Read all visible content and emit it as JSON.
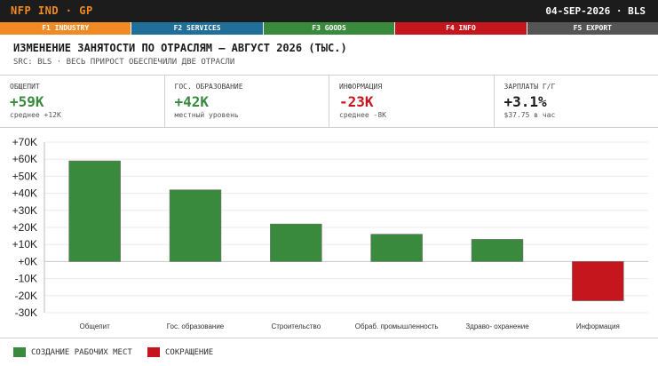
{
  "terminal": {
    "ticker": "NFP IND · GP",
    "date_source": "04-SEP-2026 · BLS"
  },
  "fkeys": [
    {
      "label": "F1 INDUSTRY",
      "color": "#f08a24"
    },
    {
      "label": "F2 SERVICES",
      "color": "#1f6f99"
    },
    {
      "label": "F3 GOODS",
      "color": "#3a8a3e"
    },
    {
      "label": "F4 INFO",
      "color": "#c4161c"
    },
    {
      "label": "F5 EXPORT",
      "color": "#555555"
    }
  ],
  "header": {
    "title": "ИЗМЕНЕНИЕ ЗАНЯТОСТИ ПО ОТРАСЛЯМ — АВГУСТ 2026 (ТЫС.)",
    "subtitle": "SRC: BLS · ВЕСЬ ПРИРОСТ ОБЕСПЕЧИЛИ ДВЕ ОТРАСЛИ"
  },
  "kpis": [
    {
      "label": "ОБЩЕПИТ",
      "value": "+59K",
      "sub": "среднее +12K",
      "color": "#3a8a3e"
    },
    {
      "label": "ГОС. ОБРАЗОВАНИЕ",
      "value": "+42K",
      "sub": "местный уровень",
      "color": "#3a8a3e"
    },
    {
      "label": "ИНФОРМАЦИЯ",
      "value": "-23K",
      "sub": "среднее -8K",
      "color": "#c4161c"
    },
    {
      "label": "ЗАРПЛАТЫ Г/Г",
      "value": "+3.1%",
      "sub": "$37.75 в час",
      "color": "#1a1a1a"
    }
  ],
  "chart_data": {
    "type": "bar",
    "categories": [
      "Общепит",
      "Гос. образование",
      "Строительство",
      "Обраб. промышленность",
      "Здраво- охранение",
      "Информация"
    ],
    "values": [
      59,
      42,
      22,
      16,
      13,
      -23
    ],
    "ylim": [
      -30,
      70
    ],
    "yticks": [
      -30,
      -20,
      -10,
      0,
      10,
      20,
      30,
      40,
      50,
      60,
      70
    ],
    "ytick_labels": [
      "-30K",
      "-20K",
      "-10K",
      "+0K",
      "+10K",
      "+20K",
      "+30K",
      "+40K",
      "+50K",
      "+60K",
      "+70K"
    ],
    "colors": {
      "positive": "#3a8a3e",
      "negative": "#c4161c"
    },
    "legend": [
      {
        "label": "СОЗДАНИЕ РАБОЧИХ МЕСТ",
        "color": "#3a8a3e"
      },
      {
        "label": "СОКРАЩЕНИЕ",
        "color": "#c4161c"
      }
    ],
    "legend_position": "bottom-left",
    "grid": true
  }
}
